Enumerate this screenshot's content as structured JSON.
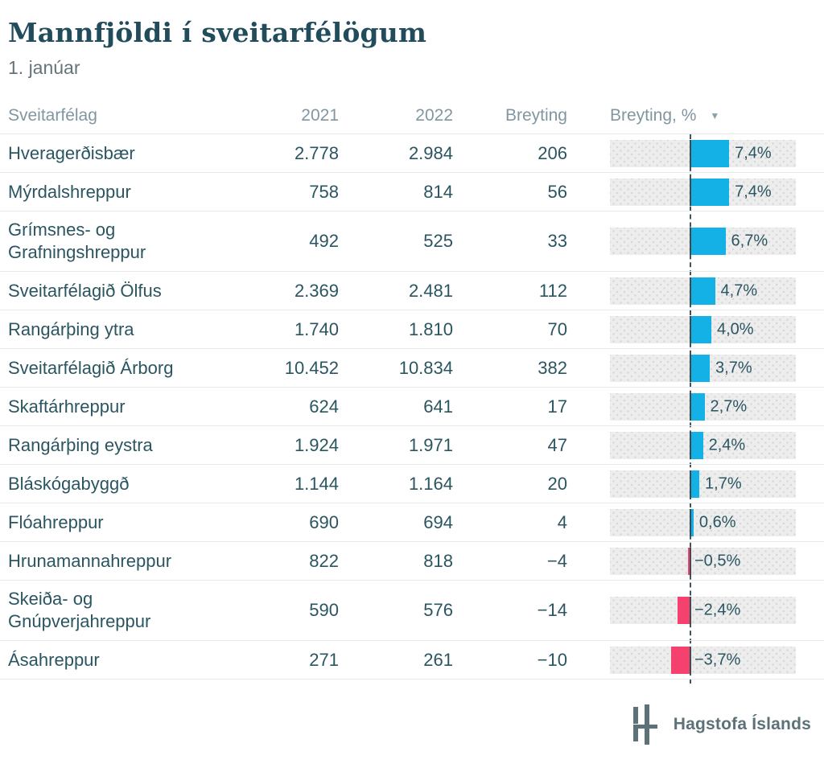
{
  "page": {
    "title": "Mannfjöldi í sveitarfélögum",
    "subtitle": "1. janúar"
  },
  "table": {
    "headers": {
      "name": "Sveitarfélag",
      "col2021": "2021",
      "col2022": "2022",
      "change": "Breyting",
      "change_pct": "Breyting, %"
    },
    "sort_indicator": "▼",
    "rows": [
      {
        "name": "Hveragerðisbær",
        "y2021": "2.778",
        "y2022": "2.984",
        "change": "206",
        "pct": 7.4,
        "pct_label": "7,4%"
      },
      {
        "name": "Mýrdalshreppur",
        "y2021": "758",
        "y2022": "814",
        "change": "56",
        "pct": 7.4,
        "pct_label": "7,4%"
      },
      {
        "name": "Grímsnes- og Grafningshreppur",
        "y2021": "492",
        "y2022": "525",
        "change": "33",
        "pct": 6.7,
        "pct_label": "6,7%"
      },
      {
        "name": "Sveitarfélagið Ölfus",
        "y2021": "2.369",
        "y2022": "2.481",
        "change": "112",
        "pct": 4.7,
        "pct_label": "4,7%"
      },
      {
        "name": "Rangárþing ytra",
        "y2021": "1.740",
        "y2022": "1.810",
        "change": "70",
        "pct": 4.0,
        "pct_label": "4,0%"
      },
      {
        "name": "Sveitarfélagið Árborg",
        "y2021": "10.452",
        "y2022": "10.834",
        "change": "382",
        "pct": 3.7,
        "pct_label": "3,7%"
      },
      {
        "name": "Skaftárhreppur",
        "y2021": "624",
        "y2022": "641",
        "change": "17",
        "pct": 2.7,
        "pct_label": "2,7%"
      },
      {
        "name": "Rangárþing eystra",
        "y2021": "1.924",
        "y2022": "1.971",
        "change": "47",
        "pct": 2.4,
        "pct_label": "2,4%"
      },
      {
        "name": "Bláskógabyggð",
        "y2021": "1.144",
        "y2022": "1.164",
        "change": "20",
        "pct": 1.7,
        "pct_label": "1,7%"
      },
      {
        "name": "Flóahreppur",
        "y2021": "690",
        "y2022": "694",
        "change": "4",
        "pct": 0.6,
        "pct_label": "0,6%"
      },
      {
        "name": "Hrunamannahreppur",
        "y2021": "822",
        "y2022": "818",
        "change": "−4",
        "pct": -0.5,
        "pct_label": "−0,5%"
      },
      {
        "name": "Skeiða- og Gnúpverjahreppur",
        "y2021": "590",
        "y2022": "576",
        "change": "−14",
        "pct": -2.4,
        "pct_label": "−2,4%"
      },
      {
        "name": "Ásahreppur",
        "y2021": "271",
        "y2022": "261",
        "change": "−10",
        "pct": -3.7,
        "pct_label": "−3,7%"
      }
    ]
  },
  "footer": {
    "brand": "Hagstofa Íslands"
  },
  "colors": {
    "positive_bar": "#14b1e7",
    "negative_bar": "#f4416e",
    "text_dark_teal": "#2a5561",
    "header_gray": "#8296a1",
    "zero_line": "#42535b",
    "track_bg": "#ededed"
  },
  "chart_data": {
    "type": "bar",
    "orientation": "horizontal",
    "title": "Mannfjöldi í sveitarfélögum",
    "subtitle": "1. janúar",
    "categories": [
      "Hveragerðisbær",
      "Mýrdalshreppur",
      "Grímsnes- og Grafningshreppur",
      "Sveitarfélagið Ölfus",
      "Rangárþing ytra",
      "Sveitarfélagið Árborg",
      "Skaftárhreppur",
      "Rangárþing eystra",
      "Bláskógabyggð",
      "Flóahreppur",
      "Hrunamannahreppur",
      "Skeiða- og Gnúpverjahreppur",
      "Ásahreppur"
    ],
    "series": [
      {
        "name": "2021",
        "values": [
          2778,
          758,
          492,
          2369,
          1740,
          10452,
          624,
          1924,
          1144,
          690,
          822,
          590,
          271
        ]
      },
      {
        "name": "2022",
        "values": [
          2984,
          814,
          525,
          2481,
          1810,
          10834,
          641,
          1971,
          1164,
          694,
          818,
          576,
          261
        ]
      },
      {
        "name": "Breyting",
        "values": [
          206,
          56,
          33,
          112,
          70,
          382,
          17,
          47,
          20,
          4,
          -4,
          -14,
          -10
        ]
      },
      {
        "name": "Breyting, %",
        "values": [
          7.4,
          7.4,
          6.7,
          4.7,
          4.0,
          3.7,
          2.7,
          2.4,
          1.7,
          0.6,
          -0.5,
          -2.4,
          -3.7
        ]
      }
    ],
    "plotted_series": "Breyting, %",
    "bar_colors": {
      "positive": "#14b1e7",
      "negative": "#f4416e"
    },
    "sorted_by": "Breyting, % descending",
    "grid": false,
    "legend": false
  }
}
